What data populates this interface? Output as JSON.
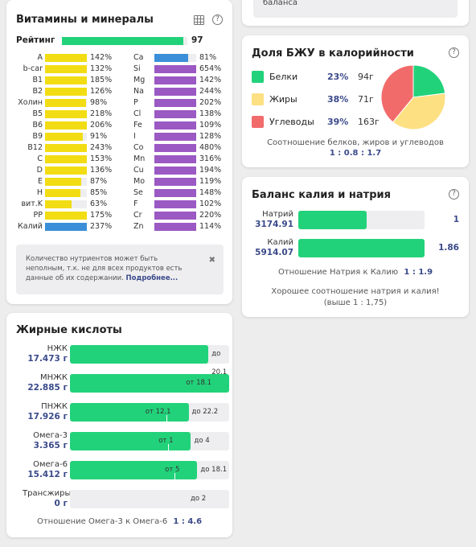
{
  "prev_card": {
    "text": "баланса"
  },
  "vitamins": {
    "title": "Витамины и минералы",
    "rating_label": "Рейтинг",
    "rating_value": "97",
    "rating_fraction": 0.97,
    "left": [
      {
        "name": "A",
        "pct": "142%",
        "fill": 1.0
      },
      {
        "name": "b-car",
        "pct": "132%",
        "fill": 1.0
      },
      {
        "name": "B1",
        "pct": "185%",
        "fill": 1.0
      },
      {
        "name": "B2",
        "pct": "126%",
        "fill": 1.0
      },
      {
        "name": "Холин",
        "pct": "98%",
        "fill": 0.98
      },
      {
        "name": "B5",
        "pct": "218%",
        "fill": 1.0
      },
      {
        "name": "B6",
        "pct": "206%",
        "fill": 1.0
      },
      {
        "name": "B9",
        "pct": "91%",
        "fill": 0.91
      },
      {
        "name": "B12",
        "pct": "243%",
        "fill": 1.0
      },
      {
        "name": "C",
        "pct": "153%",
        "fill": 1.0
      },
      {
        "name": "D",
        "pct": "136%",
        "fill": 1.0
      },
      {
        "name": "E",
        "pct": "87%",
        "fill": 0.87
      },
      {
        "name": "H",
        "pct": "85%",
        "fill": 0.85
      },
      {
        "name": "вит.K",
        "pct": "63%",
        "fill": 0.63
      },
      {
        "name": "PP",
        "pct": "175%",
        "fill": 1.0
      },
      {
        "name": "Калий",
        "pct": "237%",
        "fill": 1.0
      }
    ],
    "right": [
      {
        "name": "Ca",
        "pct": "81%",
        "fill": 0.81
      },
      {
        "name": "Si",
        "pct": "654%",
        "fill": 1.0
      },
      {
        "name": "Mg",
        "pct": "142%",
        "fill": 1.0
      },
      {
        "name": "Na",
        "pct": "244%",
        "fill": 1.0
      },
      {
        "name": "P",
        "pct": "202%",
        "fill": 1.0
      },
      {
        "name": "Cl",
        "pct": "138%",
        "fill": 1.0
      },
      {
        "name": "Fe",
        "pct": "109%",
        "fill": 1.0
      },
      {
        "name": "I",
        "pct": "128%",
        "fill": 1.0
      },
      {
        "name": "Co",
        "pct": "480%",
        "fill": 1.0
      },
      {
        "name": "Mn",
        "pct": "316%",
        "fill": 1.0
      },
      {
        "name": "Cu",
        "pct": "194%",
        "fill": 1.0
      },
      {
        "name": "Mo",
        "pct": "119%",
        "fill": 1.0
      },
      {
        "name": "Se",
        "pct": "148%",
        "fill": 1.0
      },
      {
        "name": "F",
        "pct": "102%",
        "fill": 1.0
      },
      {
        "name": "Cr",
        "pct": "220%",
        "fill": 1.0
      },
      {
        "name": "Zn",
        "pct": "114%",
        "fill": 1.0
      }
    ],
    "note_text": "Количество нутриентов может быть неполным, т.к. не для всех продуктов есть данные об их содержании.",
    "note_link": "Подробнее...",
    "close_glyph": "✖",
    "help_glyph": "?"
  },
  "fatty": {
    "title": "Жирные кислоты",
    "rows": [
      {
        "name": "НЖК",
        "value": "17.473 г",
        "fill": 0.87,
        "max_label": "до 20.1"
      },
      {
        "name": "МНЖК",
        "value": "22.885 г",
        "fill": 1.0,
        "min_label": "от 18.1"
      },
      {
        "name": "ПНЖК",
        "value": "17.926 г",
        "fill": 0.745,
        "min_label": "от 12.1",
        "max_label": "до 22.2"
      },
      {
        "name": "Омега-3",
        "value": "3.365 г",
        "fill": 0.76,
        "min_label": "от 1",
        "max_label": "до 4"
      },
      {
        "name": "Омега-6",
        "value": "15.412 г",
        "fill": 0.8,
        "min_label": "от 5",
        "max_label": "до 18.1"
      },
      {
        "name": "Трансжиры",
        "value": "0 г",
        "fill": 0.0,
        "max_label": "до 2"
      }
    ],
    "ratio_label": "Отношение Омега-3 к Омега-6",
    "ratio_value": "1 : 4.6"
  },
  "pfc": {
    "title": "Доля БЖУ в калорийности",
    "help_glyph": "?",
    "items": [
      {
        "name": "Белки",
        "pct": "23%",
        "grams": "94г",
        "color": "#22d27a"
      },
      {
        "name": "Жиры",
        "pct": "38%",
        "grams": "71г",
        "color": "#fde082"
      },
      {
        "name": "Углеводы",
        "pct": "39%",
        "grams": "163г",
        "color": "#f26b6b"
      }
    ],
    "chart_data": {
      "type": "pie",
      "categories": [
        "Белки",
        "Жиры",
        "Углеводы"
      ],
      "values": [
        23,
        38,
        39
      ],
      "colors": [
        "#22d27a",
        "#fde082",
        "#f26b6b"
      ]
    },
    "ratio_label": "Соотношение белков, жиров и углеводов",
    "ratio_value": "1 : 0.8 : 1.7"
  },
  "kna": {
    "title": "Баланс калия и натрия",
    "help_glyph": "?",
    "rows": [
      {
        "name": "Натрий",
        "value": "3174.91",
        "ratio": "1",
        "fill": 0.54
      },
      {
        "name": "Калий",
        "value": "5914.07",
        "ratio": "1.86",
        "fill": 1.0
      }
    ],
    "ratio_label": "Отношение Натрия к Калию",
    "ratio_value": "1 : 1.9",
    "message": "Хорошее соотношение натрия и калия! (выше 1 : 1,75)"
  }
}
